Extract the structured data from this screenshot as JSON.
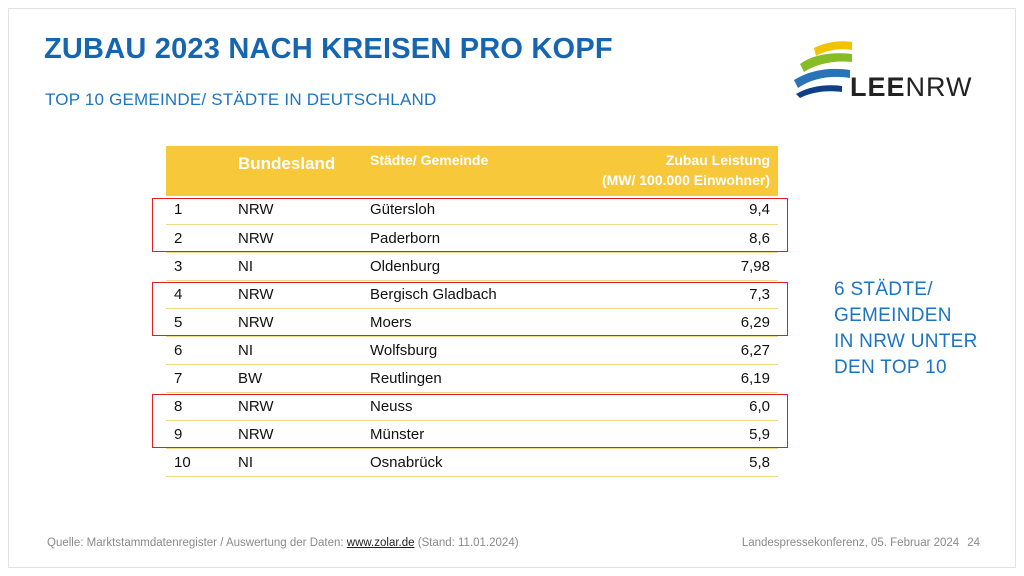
{
  "title": "ZUBAU 2023 NACH KREISEN PRO KOPF",
  "subtitle": "TOP 10 GEMEINDE/ STÄDTE IN DEUTSCHLAND",
  "logo": {
    "word1": "LEE",
    "word2": "NRW",
    "colors": [
      "#f2c400",
      "#86bc25",
      "#2a73b8",
      "#0e3f87"
    ]
  },
  "table": {
    "headers": {
      "rank": "",
      "bundesland": "Bundesland",
      "stadt": "Städte/ Gemeinde",
      "zubau_line1": "Zubau Leistung",
      "zubau_line2": "(MW/ 100.000 Einwohner)"
    },
    "rows": [
      {
        "rank": "1",
        "land": "NRW",
        "stadt": "Gütersloh",
        "wert": "9,4"
      },
      {
        "rank": "2",
        "land": "NRW",
        "stadt": "Paderborn",
        "wert": "8,6"
      },
      {
        "rank": "3",
        "land": "NI",
        "stadt": "Oldenburg",
        "wert": "7,98"
      },
      {
        "rank": "4",
        "land": "NRW",
        "stadt": "Bergisch Gladbach",
        "wert": "7,3"
      },
      {
        "rank": "5",
        "land": "NRW",
        "stadt": "Moers",
        "wert": "6,29"
      },
      {
        "rank": "6",
        "land": "NI",
        "stadt": "Wolfsburg",
        "wert": "6,27"
      },
      {
        "rank": "7",
        "land": "BW",
        "stadt": "Reutlingen",
        "wert": "6,19"
      },
      {
        "rank": "8",
        "land": "NRW",
        "stadt": "Neuss",
        "wert": "6,0"
      },
      {
        "rank": "9",
        "land": "NRW",
        "stadt": "Münster",
        "wert": "5,9"
      },
      {
        "rank": "10",
        "land": "NI",
        "stadt": "Osnabrück",
        "wert": "5,8"
      }
    ],
    "header_color": "#f6c83a",
    "highlight_color": "#e01f24"
  },
  "note": [
    "6 STÄDTE/",
    "GEMEINDEN",
    "IN NRW UNTER",
    "DEN TOP 10"
  ],
  "footer": {
    "source_prefix": "Quelle: Marktstammdatenregister / Auswertung der Daten: ",
    "source_link": "www.zolar.de",
    "source_suffix": " (Stand: 11.01.2024)",
    "event": "Landespressekonferenz, 05. Februar 2024",
    "page": "24"
  }
}
